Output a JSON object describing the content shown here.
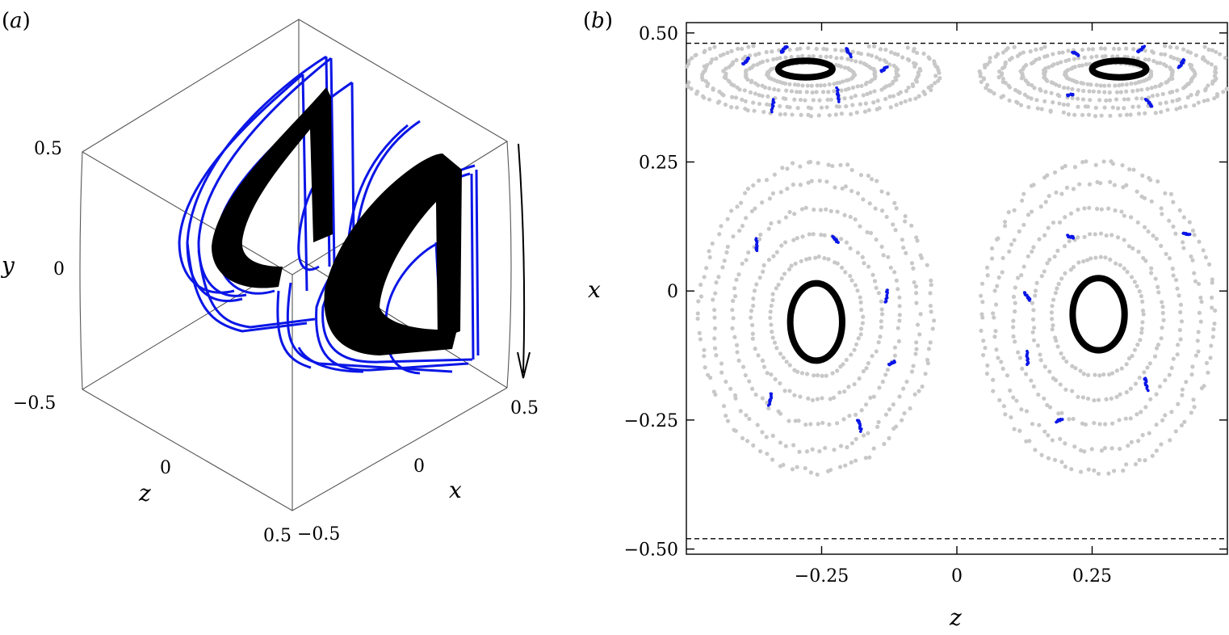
{
  "panel_a": {
    "label_open": "(",
    "label_letter": "a",
    "label_close": ")",
    "axes": {
      "x": {
        "label": "x",
        "ticks": [
          "−0.5",
          "0",
          "0.5"
        ]
      },
      "y": {
        "label": "y",
        "ticks": [
          "0.5",
          "0",
          "−0.5"
        ]
      },
      "z": {
        "label": "z",
        "ticks": [
          "0",
          "0.5"
        ]
      }
    },
    "series": [
      {
        "color": "#0b16e6"
      },
      {
        "color": "#000000"
      }
    ]
  },
  "chart_data": [
    {
      "type": "scatter",
      "panel": "b",
      "label_open": "(",
      "label_letter": "b",
      "label_close": ")",
      "xlabel": "z",
      "ylabel": "x",
      "xlim": [
        -0.5,
        0.5
      ],
      "ylim": [
        -0.51,
        0.52
      ],
      "xticks": [
        {
          "value": -0.25,
          "label": "−0.25"
        },
        {
          "value": 0,
          "label": "0"
        },
        {
          "value": 0.25,
          "label": "0.25"
        }
      ],
      "yticks": [
        {
          "value": 0.5,
          "label": "0.50"
        },
        {
          "value": 0.25,
          "label": "0.25"
        },
        {
          "value": 0,
          "label": "0"
        },
        {
          "value": -0.25,
          "label": "−0.25"
        },
        {
          "value": -0.5,
          "label": "−0.50"
        }
      ],
      "reference_lines": [
        {
          "y": 0.48,
          "style": "dashed"
        },
        {
          "y": -0.48,
          "style": "dashed"
        }
      ],
      "grid": false,
      "colors": {
        "background_orbits": "#c8c8c8",
        "islands": "#0b16e6",
        "invariant_tori": "#000000"
      },
      "rings_black": [
        {
          "cx": -0.26,
          "cy": -0.06,
          "rx": 0.048,
          "ry": 0.075
        },
        {
          "cx": 0.262,
          "cy": -0.045,
          "rx": 0.048,
          "ry": 0.07
        },
        {
          "cx": -0.28,
          "cy": 0.43,
          "rx": 0.05,
          "ry": 0.016
        },
        {
          "cx": 0.3,
          "cy": 0.43,
          "rx": 0.05,
          "ry": 0.016
        }
      ],
      "islands_blue": [
        {
          "z": -0.39,
          "x": 0.445
        },
        {
          "z": -0.32,
          "x": 0.468
        },
        {
          "z": -0.2,
          "x": 0.462
        },
        {
          "z": -0.135,
          "x": 0.43
        },
        {
          "z": -0.22,
          "x": 0.38
        },
        {
          "z": -0.34,
          "x": 0.36
        },
        {
          "z": 0.22,
          "x": 0.46
        },
        {
          "z": 0.34,
          "x": 0.468
        },
        {
          "z": 0.415,
          "x": 0.44
        },
        {
          "z": 0.355,
          "x": 0.365
        },
        {
          "z": 0.21,
          "x": 0.38
        },
        {
          "z": -0.37,
          "x": 0.09
        },
        {
          "z": -0.225,
          "x": 0.1
        },
        {
          "z": -0.13,
          "x": -0.01
        },
        {
          "z": -0.12,
          "x": -0.14
        },
        {
          "z": -0.18,
          "x": -0.26
        },
        {
          "z": -0.345,
          "x": -0.21
        },
        {
          "z": 0.425,
          "x": 0.11
        },
        {
          "z": 0.21,
          "x": 0.105
        },
        {
          "z": 0.13,
          "x": -0.01
        },
        {
          "z": 0.13,
          "x": -0.13
        },
        {
          "z": 0.19,
          "x": -0.25
        },
        {
          "z": 0.35,
          "x": -0.18
        }
      ],
      "background_rings": [
        {
          "cx": -0.26,
          "cy": -0.05,
          "rx": [
            0.085,
            0.12,
            0.155,
            0.19,
            0.215
          ],
          "ry": [
            0.115,
            0.16,
            0.21,
            0.26,
            0.3
          ]
        },
        {
          "cx": 0.26,
          "cy": -0.05,
          "rx": [
            0.085,
            0.12,
            0.155,
            0.19,
            0.215
          ],
          "ry": [
            0.115,
            0.16,
            0.21,
            0.26,
            0.3
          ]
        },
        {
          "cx": -0.27,
          "cy": 0.42,
          "rx": [
            0.08,
            0.12,
            0.16,
            0.2,
            0.235
          ],
          "ry": [
            0.022,
            0.035,
            0.05,
            0.065,
            0.08
          ],
          "clip_top": 0.475
        },
        {
          "cx": 0.28,
          "cy": 0.42,
          "rx": [
            0.08,
            0.12,
            0.16,
            0.2,
            0.235
          ],
          "ry": [
            0.022,
            0.035,
            0.05,
            0.065,
            0.08
          ],
          "clip_top": 0.475
        }
      ]
    }
  ]
}
